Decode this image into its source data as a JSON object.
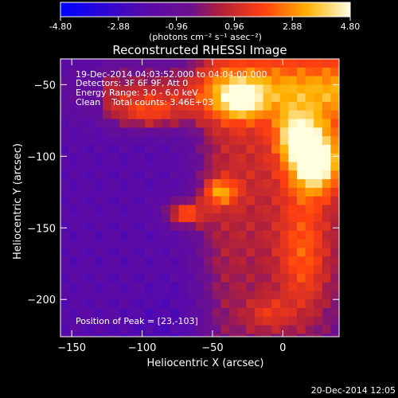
{
  "chart_data": {
    "type": "heatmap",
    "title": "Reconstructed RHESSI Image",
    "xlabel": "Heliocentric X (arcsec)",
    "ylabel": "Heliocentric Y (arcsec)",
    "xlim": [
      -158,
      40
    ],
    "ylim": [
      -226,
      -32
    ],
    "x_ticks": [
      -150,
      -100,
      -50,
      0
    ],
    "y_ticks": [
      -50,
      -100,
      -150,
      -200
    ],
    "colorbar": {
      "min": -4.8,
      "max": 4.8,
      "tick_values": [
        -4.8,
        -2.88,
        -0.96,
        0.96,
        2.88,
        4.8
      ],
      "tick_labels": [
        "-4.80",
        "-2.88",
        "-0.96",
        "0.96",
        "2.88",
        "4.80"
      ],
      "unit_label": "(photons cm⁻² s⁻¹ asec⁻²)",
      "colors": [
        "#0000ff",
        "#5a0aa8",
        "#6a1090",
        "#b0203a",
        "#ff4010",
        "#ffb000",
        "#ffffe0"
      ]
    },
    "annotations": [
      "19-Dec-2014 04:03:52.000 to 04:04:00.000",
      "Detectors: 3F 6F 9F, Att 0",
      "Energy Range: 3.0 - 6.0 keV",
      "Clean    Total counts: 3.46E+03"
    ],
    "peak_label": "Position of Peak = [23,-103]",
    "peak": [
      23,
      -103
    ]
  },
  "footer_timestamp": "20-Dec-2014 12:05"
}
